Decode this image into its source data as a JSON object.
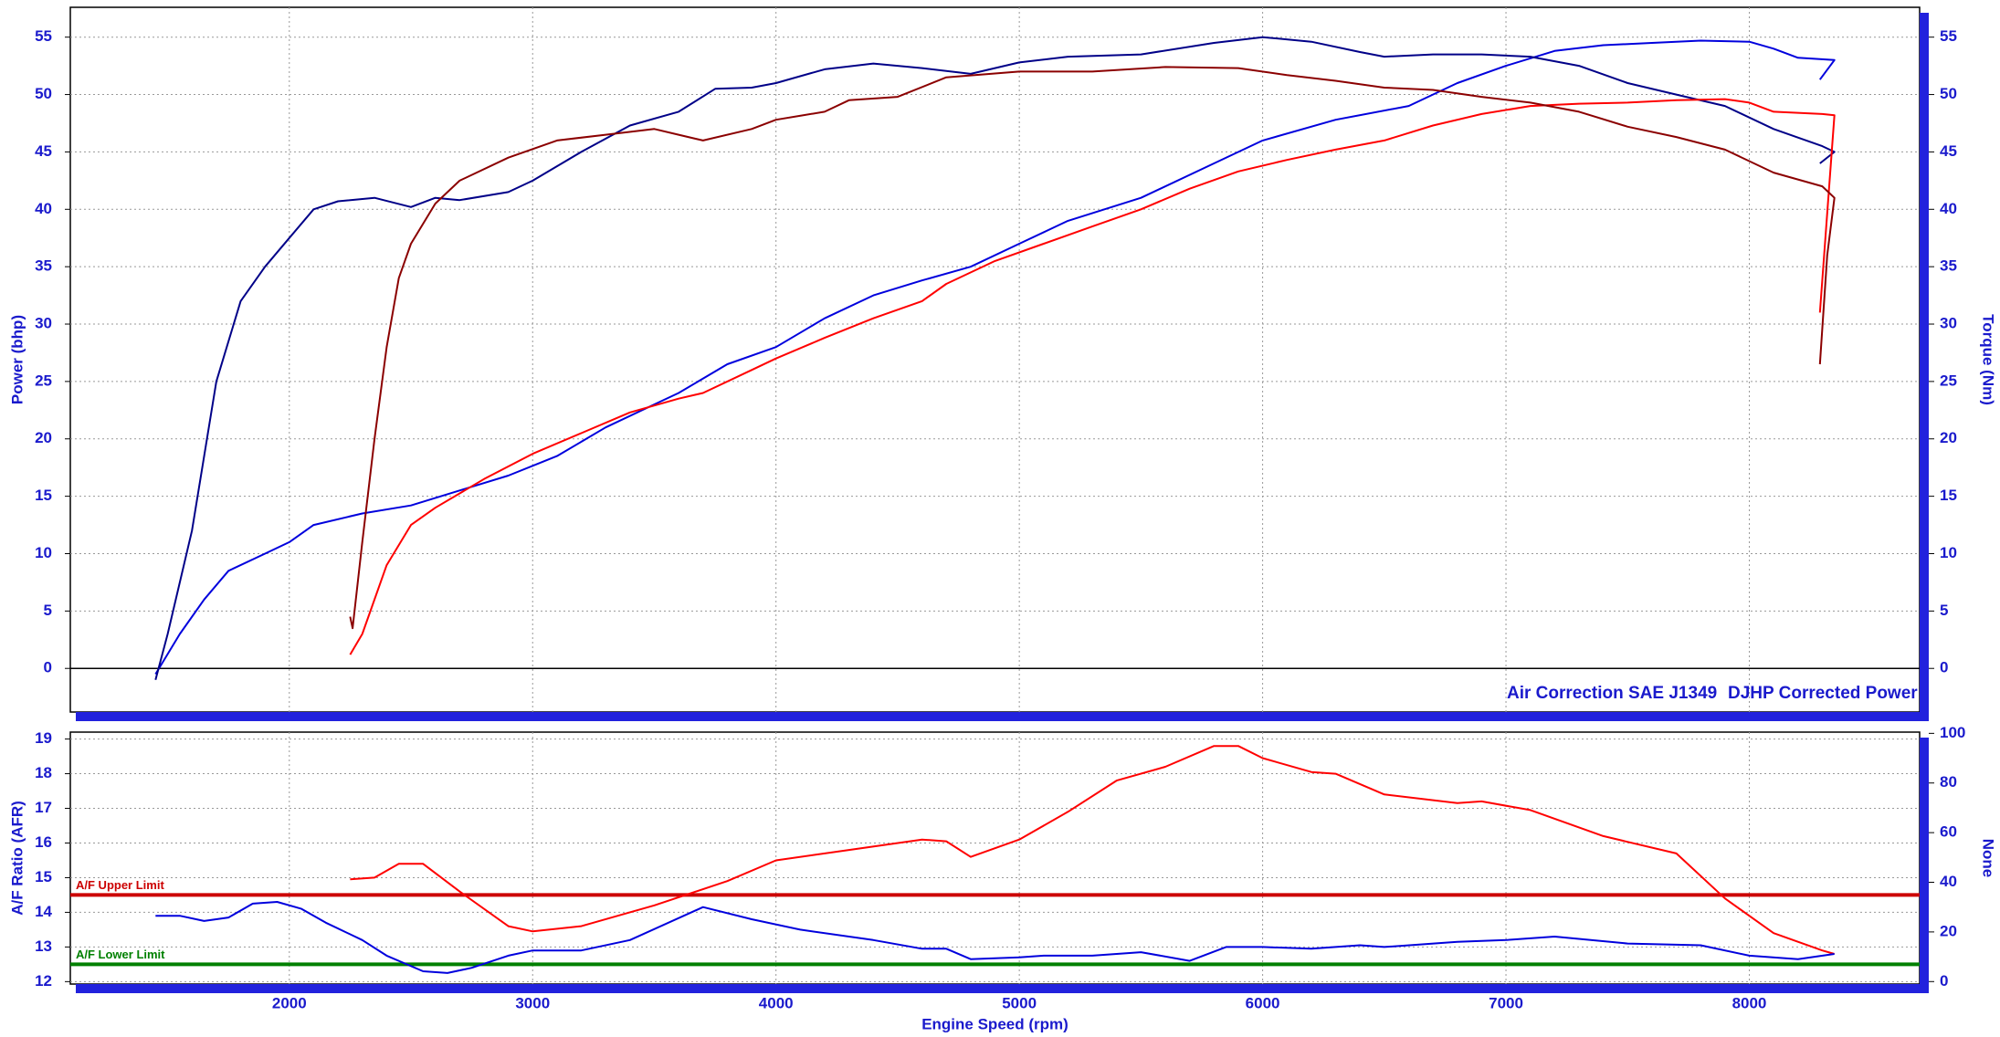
{
  "chart_data": [
    {
      "type": "line",
      "y_label": "Power (bhp)",
      "y2_label": "Torque (Nm)",
      "annotations": [
        "Air Correction SAE J1349",
        "DJHP Corrected Power"
      ],
      "xlim": [
        1100,
        8700
      ],
      "xticks": [
        2000,
        3000,
        4000,
        5000,
        6000,
        7000,
        8000
      ],
      "ylim": [
        -3.8,
        57.6
      ],
      "yticks": [
        0,
        5,
        10,
        15,
        20,
        25,
        30,
        35,
        40,
        45,
        50,
        55
      ],
      "y2lim": [
        -3.8,
        57.6
      ],
      "y2ticks": [
        0,
        5,
        10,
        15,
        20,
        25,
        30,
        35,
        40,
        45,
        50,
        55
      ],
      "grid": true,
      "series": [
        {
          "color": "#0000dd",
          "x": [
            1450,
            1550,
            1650,
            1750,
            1900,
            2000,
            2100,
            2300,
            2500,
            2700,
            2900,
            3100,
            3300,
            3500,
            3600,
            3800,
            4000,
            4200,
            4400,
            4600,
            4800,
            5000,
            5200,
            5500,
            5800,
            6000,
            6300,
            6600,
            6800,
            7000,
            7200,
            7400,
            7600,
            7800,
            8000,
            8100,
            8200,
            8350,
            8290
          ],
          "values": [
            -0.5,
            3,
            6,
            8.5,
            10,
            11,
            12.5,
            13.5,
            14.2,
            15.5,
            16.8,
            18.5,
            21,
            23,
            24,
            26.5,
            28,
            30.5,
            32.5,
            33.8,
            35,
            37,
            39,
            41,
            44,
            46,
            47.8,
            49,
            51,
            52.5,
            53.8,
            54.3,
            54.5,
            54.7,
            54.6,
            54,
            53.2,
            53,
            51.3
          ]
        },
        {
          "color": "#000088",
          "axis": "y2",
          "x": [
            1450,
            1500,
            1600,
            1700,
            1800,
            1900,
            2000,
            2100,
            2200,
            2350,
            2500,
            2600,
            2700,
            2900,
            3000,
            3200,
            3400,
            3600,
            3750,
            3900,
            4000,
            4200,
            4400,
            4600,
            4800,
            5000,
            5200,
            5500,
            5800,
            6000,
            6200,
            6400,
            6500,
            6700,
            6900,
            7100,
            7300,
            7500,
            7700,
            7900,
            8100,
            8300,
            8350,
            8290
          ],
          "values": [
            -1,
            3,
            12,
            25,
            32,
            35,
            37.5,
            40,
            40.7,
            41,
            40.2,
            41,
            40.8,
            41.5,
            42.5,
            45,
            47.3,
            48.5,
            50.5,
            50.6,
            51,
            52.2,
            52.7,
            52.3,
            51.8,
            52.8,
            53.3,
            53.5,
            54.5,
            55,
            54.6,
            53.7,
            53.3,
            53.5,
            53.5,
            53.3,
            52.5,
            51,
            50,
            49,
            47,
            45.5,
            45,
            44
          ]
        },
        {
          "color": "#ff0000",
          "x": [
            2250,
            2300,
            2400,
            2500,
            2600,
            2800,
            3000,
            3200,
            3400,
            3600,
            3700,
            3900,
            4000,
            4200,
            4400,
            4600,
            4700,
            4900,
            5100,
            5300,
            5500,
            5700,
            5900,
            6100,
            6300,
            6500,
            6700,
            6900,
            7100,
            7300,
            7500,
            7700,
            7900,
            8000,
            8100,
            8300,
            8350,
            8290
          ],
          "values": [
            1.2,
            3,
            9,
            12.5,
            14,
            16.5,
            18.7,
            20.5,
            22.3,
            23.5,
            24,
            26,
            27,
            28.8,
            30.5,
            32,
            33.5,
            35.5,
            37,
            38.5,
            40,
            41.8,
            43.3,
            44.3,
            45.2,
            46,
            47.3,
            48.3,
            49,
            49.2,
            49.3,
            49.5,
            49.6,
            49.3,
            48.5,
            48.3,
            48.2,
            31
          ]
        },
        {
          "color": "#8b0000",
          "axis": "y2",
          "x": [
            2250,
            2260,
            2300,
            2350,
            2400,
            2450,
            2500,
            2600,
            2700,
            2900,
            3100,
            3300,
            3500,
            3600,
            3700,
            3900,
            4000,
            4200,
            4300,
            4500,
            4700,
            5000,
            5300,
            5600,
            5900,
            6100,
            6300,
            6500,
            6700,
            6900,
            7100,
            7300,
            7500,
            7700,
            7900,
            8100,
            8300,
            8350,
            8320,
            8290
          ],
          "values": [
            4.5,
            3.5,
            11,
            20,
            28,
            34,
            37,
            40.5,
            42.5,
            44.5,
            46,
            46.5,
            47,
            46.5,
            46,
            47,
            47.8,
            48.5,
            49.5,
            49.8,
            51.5,
            52,
            52,
            52.4,
            52.3,
            51.7,
            51.2,
            50.6,
            50.4,
            49.8,
            49.3,
            48.5,
            47.2,
            46.3,
            45.2,
            43.2,
            42,
            41,
            36,
            26.5
          ]
        }
      ]
    },
    {
      "type": "line",
      "x_label": "Engine Speed (rpm)",
      "y_label": "A/F Ratio (AFR)",
      "y2_label": "None",
      "xlim": [
        1100,
        8700
      ],
      "xticks": [
        2000,
        3000,
        4000,
        5000,
        6000,
        7000,
        8000
      ],
      "ylim": [
        11.93,
        19.2
      ],
      "yticks": [
        12,
        13,
        14,
        15,
        16,
        17,
        18,
        19
      ],
      "y2lim": [
        -1,
        100.5
      ],
      "y2ticks": [
        0,
        20,
        40,
        60,
        80,
        100
      ],
      "grid": true,
      "limits": [
        {
          "label": "A/F Upper Limit",
          "value": 14.5,
          "color": "#cc0000"
        },
        {
          "label": "A/F Lower Limit",
          "value": 12.5,
          "color": "#008000"
        }
      ],
      "series": [
        {
          "color": "#ff0000",
          "x": [
            2250,
            2350,
            2450,
            2550,
            2700,
            2900,
            3000,
            3200,
            3500,
            3800,
            4000,
            4300,
            4600,
            4700,
            4800,
            5000,
            5200,
            5400,
            5600,
            5800,
            5900,
            6000,
            6200,
            6300,
            6500,
            6800,
            6900,
            7100,
            7400,
            7700,
            7900,
            8100,
            8300,
            8350
          ],
          "values": [
            14.95,
            15,
            15.4,
            15.4,
            14.6,
            13.6,
            13.45,
            13.6,
            14.2,
            14.9,
            15.5,
            15.8,
            16.1,
            16.05,
            15.6,
            16.1,
            16.9,
            17.8,
            18.2,
            18.8,
            18.8,
            18.45,
            18.05,
            18,
            17.4,
            17.15,
            17.2,
            16.95,
            16.2,
            15.7,
            14.4,
            13.4,
            12.9,
            12.8
          ]
        },
        {
          "color": "#0000dd",
          "x": [
            1450,
            1550,
            1650,
            1750,
            1850,
            1950,
            2050,
            2150,
            2300,
            2400,
            2550,
            2650,
            2750,
            2900,
            3000,
            3200,
            3400,
            3700,
            3900,
            4100,
            4400,
            4600,
            4700,
            4800,
            5000,
            5100,
            5300,
            5500,
            5700,
            5850,
            6000,
            6200,
            6400,
            6500,
            6800,
            7000,
            7200,
            7500,
            7800,
            8000,
            8200,
            8350
          ],
          "values": [
            13.9,
            13.9,
            13.75,
            13.85,
            14.25,
            14.3,
            14.1,
            13.7,
            13.2,
            12.75,
            12.3,
            12.25,
            12.4,
            12.75,
            12.9,
            12.9,
            13.2,
            14.15,
            13.8,
            13.5,
            13.2,
            12.95,
            12.95,
            12.65,
            12.7,
            12.75,
            12.75,
            12.85,
            12.6,
            13,
            13,
            12.95,
            13.05,
            13,
            13.15,
            13.2,
            13.3,
            13.1,
            13.05,
            12.75,
            12.65,
            12.8
          ]
        }
      ]
    }
  ]
}
